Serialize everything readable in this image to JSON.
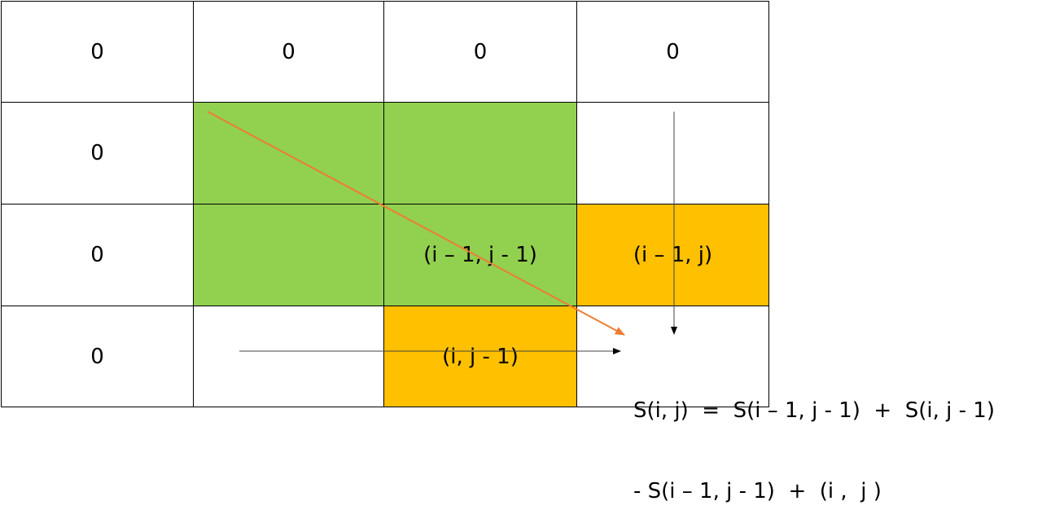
{
  "grid": {
    "rows": [
      [
        "0",
        "0",
        "0",
        "0"
      ],
      [
        "0",
        "",
        "",
        ""
      ],
      [
        "0",
        "",
        "(i – 1, j - 1)",
        "(i – 1, j)"
      ],
      [
        "0",
        "",
        "(i, j - 1)",
        ""
      ]
    ]
  },
  "formula": {
    "line1": "S(i, j)  =  S(i – 1, j - 1)  +  S(i, j - 1)",
    "line2": "- S(i – 1, j - 1)  +  (i ,  j )"
  },
  "colors": {
    "green": "#92D050",
    "orange": "#FFC000",
    "diagonal_arrow": "#ED7D31",
    "straight_arrow": "#000000"
  }
}
